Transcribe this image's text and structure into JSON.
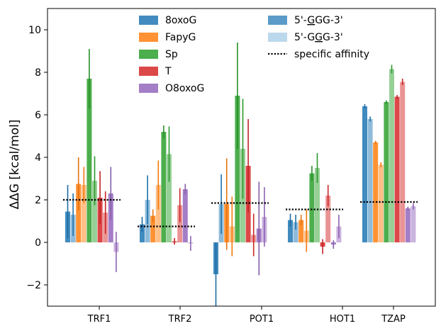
{
  "chart_data": {
    "type": "bar",
    "title": "",
    "xlabel": "",
    "ylabel": "ΔΔG [kcal/mol]",
    "ylim": [
      -3.0,
      11.0
    ],
    "yticks": [
      -2,
      0,
      2,
      4,
      6,
      8,
      10
    ],
    "ytick_labels": [
      "−2",
      "0",
      "2",
      "4",
      "6",
      "8",
      "10"
    ],
    "categories": [
      "TRF1",
      "TRF2",
      "POT1",
      "HOT1",
      "TZAP"
    ],
    "grid": false,
    "legend_position": "top",
    "series": [
      {
        "name": "8oxoG",
        "color": "#1f77b4",
        "first": [
          1.45,
          0.85,
          -1.5,
          1.05,
          6.4
        ],
        "first_err": [
          1.25,
          0.35,
          1.5,
          0.3,
          0.1
        ],
        "second": [
          1.3,
          2.0,
          1.8,
          0.95,
          5.8
        ],
        "second_err": [
          1.0,
          1.15,
          1.4,
          0.35,
          0.12
        ]
      },
      {
        "name": "FapyG",
        "color": "#ff7f0e",
        "first": [
          2.75,
          1.25,
          1.8,
          1.05,
          4.7
        ],
        "first_err": [
          1.25,
          0.3,
          2.15,
          0.25,
          0.08
        ],
        "second": [
          2.7,
          2.7,
          0.75,
          0.55,
          3.65
        ],
        "second_err": [
          0.85,
          1.15,
          1.4,
          1.0,
          0.12
        ]
      },
      {
        "name": "Sp",
        "color": "#2ca02c",
        "first": [
          7.7,
          5.2,
          6.9,
          3.25,
          6.6
        ],
        "first_err": [
          1.4,
          0.3,
          2.5,
          0.35,
          0.08
        ],
        "second": [
          2.9,
          4.15,
          4.4,
          3.5,
          8.15
        ],
        "second_err": [
          1.15,
          1.3,
          2.35,
          0.7,
          0.2
        ]
      },
      {
        "name": "T",
        "color": "#d62728",
        "first": [
          2.1,
          0.05,
          3.6,
          -0.2,
          6.85
        ],
        "first_err": [
          1.25,
          0.15,
          2.2,
          0.35,
          0.08
        ],
        "second": [
          1.4,
          1.75,
          0.35,
          2.2,
          7.55
        ],
        "second_err": [
          1.0,
          0.8,
          1.0,
          0.5,
          0.15
        ]
      },
      {
        "name": "O8oxoG",
        "color": "#9467bd",
        "first": [
          2.3,
          2.5,
          0.65,
          -0.1,
          1.6
        ],
        "first_err": [
          1.25,
          0.25,
          2.2,
          0.2,
          0.08
        ],
        "second": [
          -0.45,
          -0.05,
          1.2,
          0.75,
          1.7
        ],
        "second_err": [
          0.95,
          0.35,
          1.4,
          0.55,
          0.15
        ]
      }
    ],
    "specific_affinity": [
      2.0,
      0.75,
      1.85,
      1.55,
      1.9
    ],
    "legend_col1": [
      "8oxoG",
      "FapyG",
      "Sp",
      "T",
      "O8oxoG"
    ],
    "legend_col2": [
      {
        "prefix": "5'-",
        "underlined": "G",
        "rest": "GG-3'",
        "style": "dark"
      },
      {
        "prefix": "5'-G",
        "underlined": "G",
        "rest": "G-3'",
        "style": "light"
      },
      {
        "label": "specific affinity",
        "style": "dotted"
      }
    ],
    "color_legend_dark": "#5b9bc9",
    "color_legend_light": "#bcd8ec"
  }
}
